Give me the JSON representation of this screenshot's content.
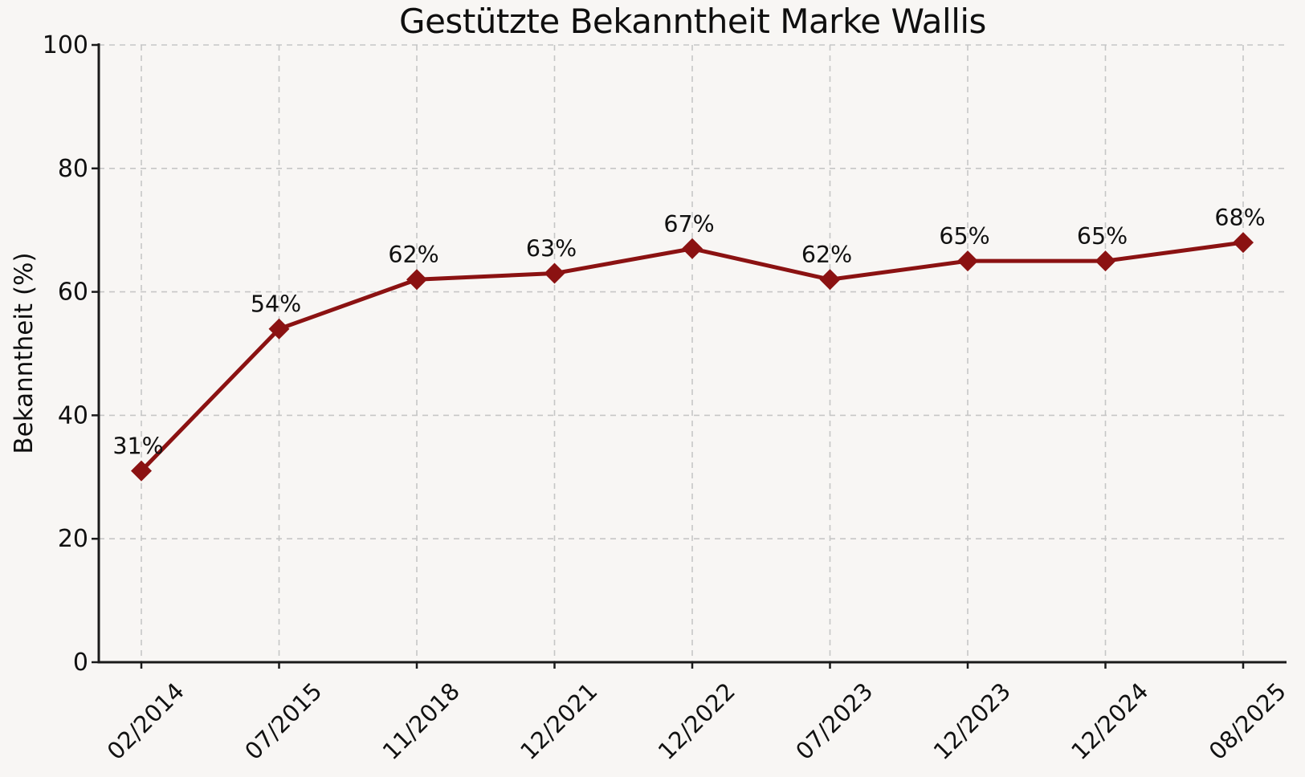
{
  "chart_data": {
    "type": "line",
    "title": "Gestützte Bekanntheit Marke Wallis",
    "xlabel": "",
    "ylabel": "Bekanntheit (%)",
    "categories": [
      "02/2014",
      "07/2015",
      "11/2018",
      "12/2021",
      "12/2022",
      "07/2023",
      "12/2023",
      "12/2024",
      "08/2025"
    ],
    "values": [
      31,
      54,
      62,
      63,
      67,
      62,
      65,
      65,
      68
    ],
    "point_labels": [
      "31%",
      "54%",
      "62%",
      "63%",
      "67%",
      "62%",
      "65%",
      "65%",
      "68%"
    ],
    "ylim": [
      0,
      100
    ],
    "yticks": [
      0,
      20,
      40,
      60,
      80,
      100
    ],
    "ytick_labels": [
      "0",
      "20",
      "40",
      "60",
      "80",
      "100"
    ],
    "x_tick_rotation_deg": 45,
    "grid": true,
    "grid_style": "dashed",
    "legend_position": "none",
    "marker": "diamond",
    "colors": {
      "line": "#8B1212",
      "marker": "#8B1212",
      "grid": "#c6c6c6",
      "axis": "#1a1a1a",
      "text": "#111111",
      "background": "#f8f6f4"
    }
  }
}
